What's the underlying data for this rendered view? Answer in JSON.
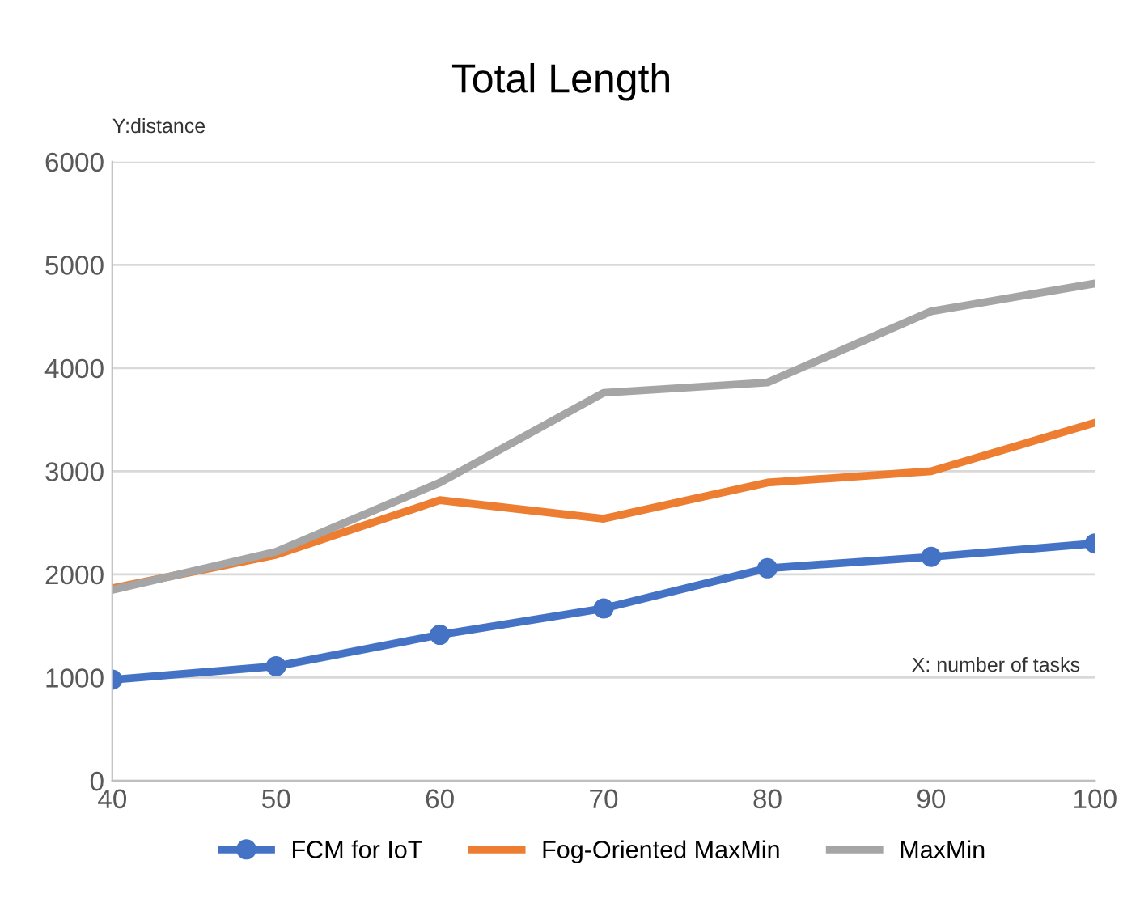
{
  "chart_data": {
    "type": "line",
    "title": "Total Length",
    "ylabel": "Y:distance",
    "xlabel": "X: number of tasks",
    "x": [
      40,
      50,
      60,
      70,
      80,
      90,
      100
    ],
    "series": [
      {
        "name": "FCM for IoT",
        "color": "#4472c4",
        "marker": "circle",
        "values": [
          980,
          1110,
          1415,
          1670,
          2060,
          2170,
          2300
        ]
      },
      {
        "name": "Fog-Oriented MaxMin",
        "color": "#ed7d31",
        "marker": "none",
        "values": [
          1865,
          2190,
          2720,
          2540,
          2890,
          3000,
          3470
        ]
      },
      {
        "name": "MaxMin",
        "color": "#a5a5a5",
        "marker": "none",
        "values": [
          1850,
          2220,
          2890,
          3760,
          3860,
          4550,
          4820
        ]
      }
    ],
    "xlim": [
      40,
      100
    ],
    "xticks": [
      40,
      50,
      60,
      70,
      80,
      90,
      100
    ],
    "ylim": [
      0,
      6000
    ],
    "yticks": [
      0,
      1000,
      2000,
      3000,
      4000,
      5000,
      6000
    ],
    "grid": "y",
    "legend": "bottom",
    "line_style": "solid"
  }
}
